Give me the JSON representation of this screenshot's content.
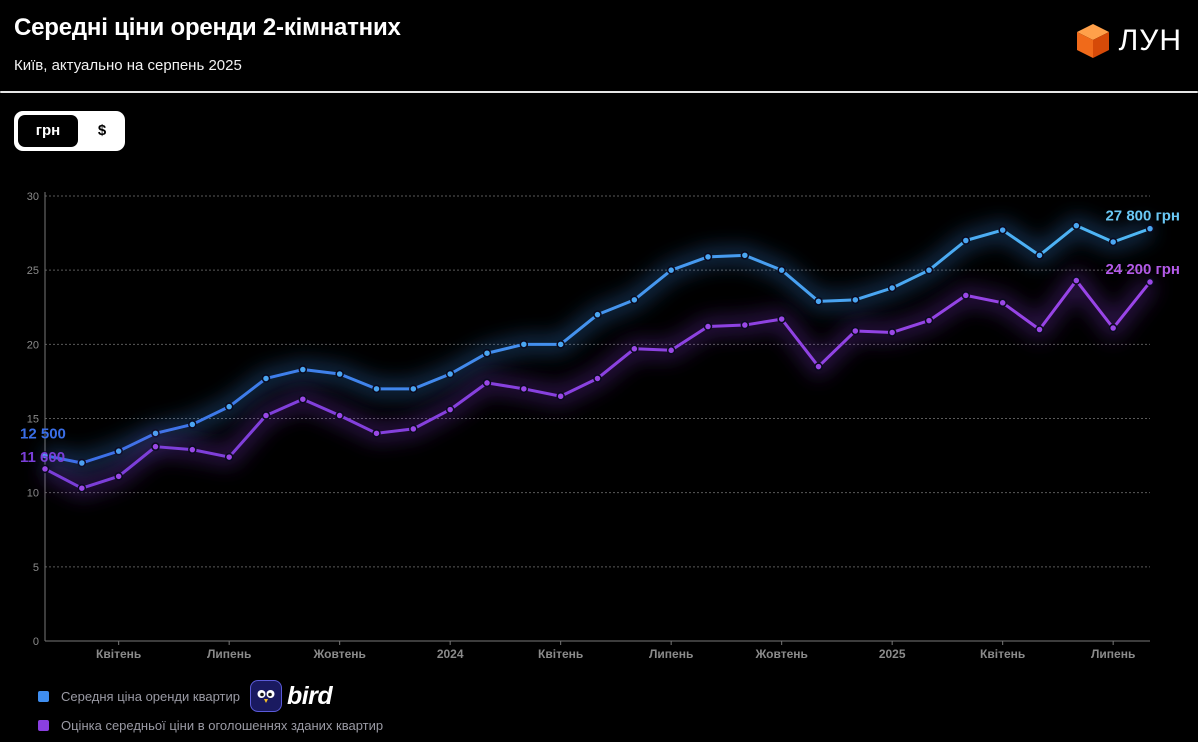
{
  "header": {
    "title": "Середні ціни оренди 2-кімнатних",
    "subtitle": "Київ, актуально на серпень 2025",
    "logo_text": "ЛУН"
  },
  "toggle": {
    "options": [
      "грн",
      "$"
    ],
    "active": "грн"
  },
  "legend": {
    "items": [
      {
        "label": "Середня ціна оренди квартир",
        "color": "#3f8ef0"
      },
      {
        "label": "Оцінка середньої ціни в оголошеннях зданих квартир",
        "color": "#8a3fe0"
      }
    ],
    "badge_text": "bird"
  },
  "colors": {
    "series1": "#3f8ef0",
    "series2": "#8a3fe0",
    "background": "#000000",
    "grid": "#555555"
  },
  "chart_data": {
    "type": "line",
    "ylim": [
      0,
      30
    ],
    "yticks": [
      0,
      5,
      10,
      15,
      20,
      25,
      30
    ],
    "grid": true,
    "legend_position": "bottom-left",
    "x_tick_labels": [
      {
        "label": "Квітень",
        "index": 2
      },
      {
        "label": "Липень",
        "index": 5
      },
      {
        "label": "Жовтень",
        "index": 8
      },
      {
        "label": "2024",
        "index": 11
      },
      {
        "label": "Квітень",
        "index": 14
      },
      {
        "label": "Липень",
        "index": 17
      },
      {
        "label": "Жовтень",
        "index": 20
      },
      {
        "label": "2025",
        "index": 23
      },
      {
        "label": "Квітень",
        "index": 26
      },
      {
        "label": "Липень",
        "index": 29
      }
    ],
    "series": [
      {
        "values": [
          12.5,
          12.0,
          12.8,
          14.0,
          14.6,
          15.8,
          17.7,
          18.3,
          18.0,
          17.0,
          17.0,
          18.0,
          19.4,
          20.0,
          20.0,
          22.0,
          23.0,
          25.0,
          25.9,
          26.0,
          25.0,
          22.9,
          23.0,
          23.8,
          25.0,
          27.0,
          27.7,
          26.0,
          28.0,
          26.9,
          27.8
        ],
        "start_label": "12 500",
        "end_label": "27 800 грн"
      },
      {
        "values": [
          11.6,
          10.3,
          11.1,
          13.1,
          12.9,
          12.4,
          15.2,
          16.3,
          15.2,
          14.0,
          14.3,
          15.6,
          17.4,
          17.0,
          16.5,
          17.7,
          19.7,
          19.6,
          21.2,
          21.3,
          21.7,
          18.5,
          20.9,
          20.8,
          21.6,
          23.3,
          22.8,
          21.0,
          24.3,
          21.1,
          24.2
        ],
        "start_label": "11 600",
        "end_label": "24 200 грн"
      }
    ]
  }
}
